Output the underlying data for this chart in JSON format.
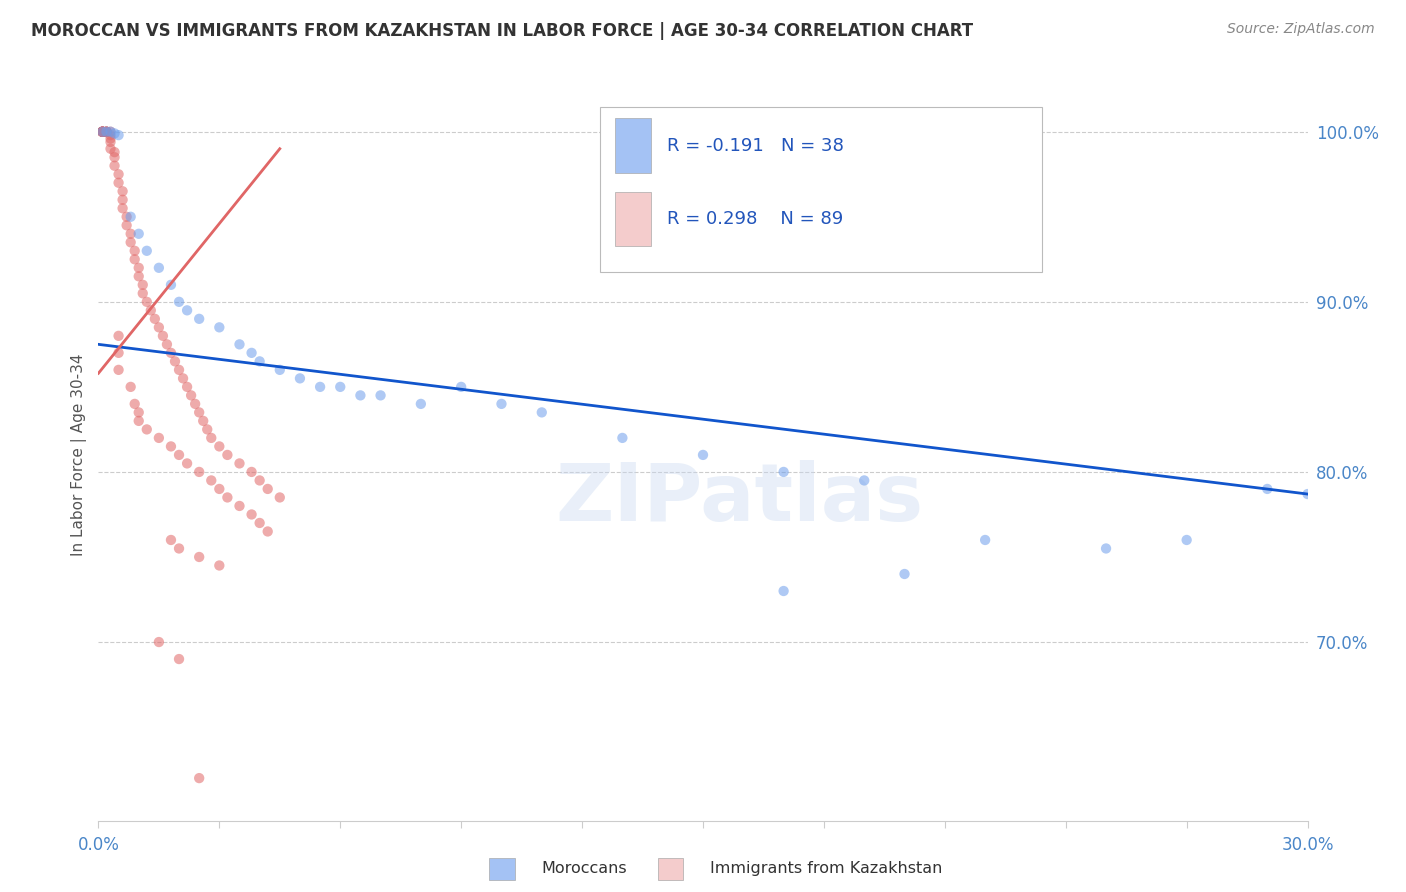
{
  "title": "MOROCCAN VS IMMIGRANTS FROM KAZAKHSTAN IN LABOR FORCE | AGE 30-34 CORRELATION CHART",
  "source": "Source: ZipAtlas.com",
  "ylabel": "In Labor Force | Age 30-34",
  "legend_label1": "Moroccans",
  "legend_label2": "Immigrants from Kazakhstan",
  "r_blue": -0.191,
  "n_blue": 38,
  "r_pink": 0.298,
  "n_pink": 89,
  "blue_color": "#a4c2f4",
  "pink_color": "#f4cccc",
  "blue_dot_color": "#6d9eeb",
  "pink_dot_color": "#e06666",
  "blue_line_color": "#1155cc",
  "pink_line_color": "#cc0000",
  "pink_trendline_color": "#e06666",
  "watermark": "ZIPatlas",
  "blue_scatter_x": [
    0.001,
    0.002,
    0.003,
    0.004,
    0.005,
    0.008,
    0.01,
    0.012,
    0.015,
    0.018,
    0.02,
    0.022,
    0.025,
    0.03,
    0.035,
    0.038,
    0.04,
    0.045,
    0.05,
    0.055,
    0.06,
    0.065,
    0.07,
    0.08,
    0.09,
    0.1,
    0.11,
    0.13,
    0.15,
    0.17,
    0.19,
    0.22,
    0.25,
    0.27,
    0.29,
    0.17,
    0.2,
    0.3
  ],
  "blue_scatter_y": [
    1.0,
    1.0,
    1.0,
    0.999,
    0.998,
    0.95,
    0.94,
    0.93,
    0.92,
    0.91,
    0.9,
    0.895,
    0.89,
    0.885,
    0.875,
    0.87,
    0.865,
    0.86,
    0.855,
    0.85,
    0.85,
    0.845,
    0.845,
    0.84,
    0.85,
    0.84,
    0.835,
    0.82,
    0.81,
    0.8,
    0.795,
    0.76,
    0.755,
    0.76,
    0.79,
    0.73,
    0.74,
    0.787
  ],
  "pink_scatter_x": [
    0.001,
    0.001,
    0.001,
    0.001,
    0.001,
    0.001,
    0.001,
    0.001,
    0.001,
    0.001,
    0.002,
    0.002,
    0.002,
    0.002,
    0.002,
    0.003,
    0.003,
    0.003,
    0.003,
    0.003,
    0.004,
    0.004,
    0.004,
    0.005,
    0.005,
    0.006,
    0.006,
    0.006,
    0.007,
    0.007,
    0.008,
    0.008,
    0.009,
    0.009,
    0.01,
    0.01,
    0.011,
    0.011,
    0.012,
    0.013,
    0.014,
    0.015,
    0.016,
    0.017,
    0.018,
    0.019,
    0.02,
    0.021,
    0.022,
    0.023,
    0.024,
    0.025,
    0.026,
    0.027,
    0.028,
    0.03,
    0.032,
    0.035,
    0.038,
    0.04,
    0.042,
    0.045,
    0.005,
    0.005,
    0.005,
    0.008,
    0.009,
    0.01,
    0.01,
    0.012,
    0.015,
    0.018,
    0.02,
    0.022,
    0.025,
    0.028,
    0.03,
    0.032,
    0.035,
    0.038,
    0.04,
    0.042,
    0.018,
    0.02,
    0.025,
    0.03,
    0.015,
    0.02,
    0.025
  ],
  "pink_scatter_y": [
    1.0,
    1.0,
    1.0,
    1.0,
    1.0,
    1.0,
    1.0,
    1.0,
    1.0,
    1.0,
    1.0,
    1.0,
    1.0,
    1.0,
    1.0,
    1.0,
    0.998,
    0.996,
    0.994,
    0.99,
    0.988,
    0.985,
    0.98,
    0.975,
    0.97,
    0.965,
    0.96,
    0.955,
    0.95,
    0.945,
    0.94,
    0.935,
    0.93,
    0.925,
    0.92,
    0.915,
    0.91,
    0.905,
    0.9,
    0.895,
    0.89,
    0.885,
    0.88,
    0.875,
    0.87,
    0.865,
    0.86,
    0.855,
    0.85,
    0.845,
    0.84,
    0.835,
    0.83,
    0.825,
    0.82,
    0.815,
    0.81,
    0.805,
    0.8,
    0.795,
    0.79,
    0.785,
    0.88,
    0.87,
    0.86,
    0.85,
    0.84,
    0.835,
    0.83,
    0.825,
    0.82,
    0.815,
    0.81,
    0.805,
    0.8,
    0.795,
    0.79,
    0.785,
    0.78,
    0.775,
    0.77,
    0.765,
    0.76,
    0.755,
    0.75,
    0.745,
    0.7,
    0.69,
    0.62
  ],
  "xlim": [
    0.0,
    0.3
  ],
  "ylim": [
    0.595,
    1.025
  ],
  "blue_trendline_x": [
    0.0,
    0.3
  ],
  "blue_trendline_y": [
    0.875,
    0.787
  ],
  "pink_trendline_x": [
    0.0,
    0.045
  ],
  "pink_trendline_y": [
    0.858,
    0.99
  ]
}
